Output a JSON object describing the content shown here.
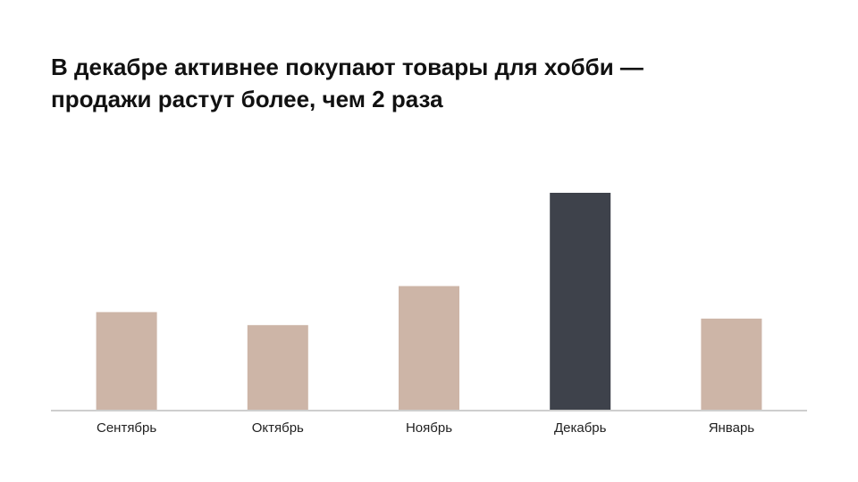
{
  "chart_data": {
    "type": "bar",
    "title": [
      "В декабре активнее покупают товары для хобби —",
      "продажи растут более, чем 2 раза"
    ],
    "categories": [
      "Сентябрь",
      "Октябрь",
      "Ноябрь",
      "Декабрь",
      "Январь"
    ],
    "values": [
      45,
      39,
      57,
      100,
      42
    ],
    "colors": [
      "#cdb5a7",
      "#cdb5a7",
      "#cdb5a7",
      "#3e424b",
      "#cdb5a7"
    ],
    "ylim": [
      0,
      100
    ]
  }
}
